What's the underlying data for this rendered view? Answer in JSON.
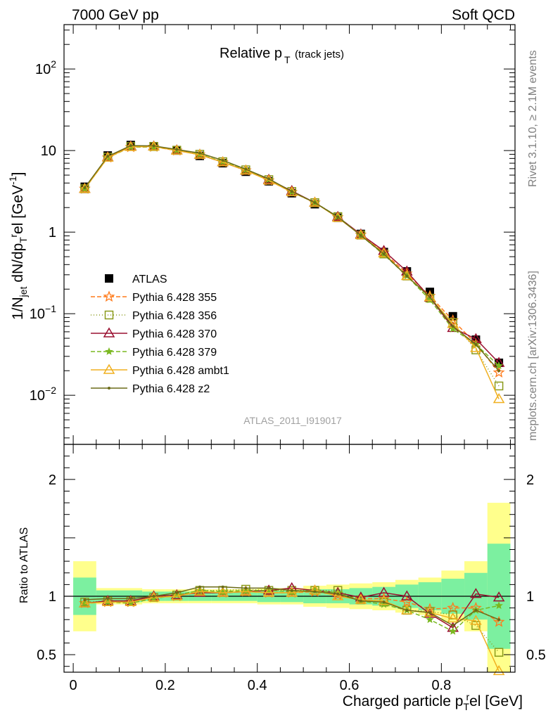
{
  "header": {
    "left": "7000 GeV pp",
    "right": "Soft QCD"
  },
  "side_labels": {
    "rivet": "Rivet 3.1.10, ≥ 2.1M events",
    "mcplots": "mcplots.cern.ch [arXiv:1306.3436]"
  },
  "watermark": "ATLAS_2011_I919017",
  "colors": {
    "ATLAS": "#000000",
    "p355": "#ff7a1a",
    "p356": "#8a9a1a",
    "p370": "#9a1030",
    "p379": "#7ab820",
    "ambt1": "#f0b020",
    "z2": "#6b6b18",
    "band_inner": "#7cf0a0",
    "band_outer": "#ffff8c"
  },
  "chart_data": [
    {
      "type": "line",
      "panel": "main",
      "title_main": "Relative p",
      "title_sub": "T",
      "title_tail": "(track jets)",
      "ylabel": "1/N_jet dN/dp_T^rel [GeV^-1]",
      "yscale": "log",
      "ylim": [
        0.0025,
        350
      ],
      "xlim": [
        -0.02,
        0.96
      ],
      "yticks": [
        {
          "v": 0.01,
          "b": "10",
          "e": "−2"
        },
        {
          "v": 0.1,
          "b": "10",
          "e": "−1"
        },
        {
          "v": 1,
          "b": "1",
          "e": ""
        },
        {
          "v": 10,
          "b": "10",
          "e": ""
        },
        {
          "v": 100,
          "b": "10",
          "e": "2"
        }
      ],
      "x": [
        0.025,
        0.075,
        0.125,
        0.175,
        0.225,
        0.275,
        0.325,
        0.375,
        0.425,
        0.475,
        0.525,
        0.575,
        0.625,
        0.675,
        0.725,
        0.775,
        0.825,
        0.875,
        0.925
      ],
      "series": [
        {
          "name": "ATLAS",
          "key": "ATLAS",
          "marker": "square",
          "dash": "",
          "values": [
            3.6,
            8.7,
            11.7,
            11.3,
            10.0,
            8.6,
            7.0,
            5.5,
            4.2,
            3.0,
            2.2,
            1.5,
            0.95,
            0.57,
            0.33,
            0.185,
            0.093,
            0.048,
            0.025
          ]
        },
        {
          "name": "Pythia 6.428 355",
          "key": "p355",
          "marker": "star",
          "dash": "6,3",
          "values": [
            3.4,
            8.2,
            11.0,
            11.1,
            10.0,
            8.9,
            7.2,
            5.7,
            4.3,
            3.1,
            2.3,
            1.52,
            0.93,
            0.56,
            0.31,
            0.165,
            0.083,
            0.043,
            0.019
          ]
        },
        {
          "name": "Pythia 6.428 356",
          "key": "p356",
          "marker": "opensquare",
          "dash": "1,3",
          "values": [
            3.4,
            8.3,
            11.2,
            11.2,
            10.1,
            9.0,
            7.3,
            5.8,
            4.4,
            3.15,
            2.3,
            1.55,
            0.92,
            0.54,
            0.29,
            0.155,
            0.078,
            0.036,
            0.013
          ]
        },
        {
          "name": "Pythia 6.428 370",
          "key": "p370",
          "marker": "opentriangle",
          "dash": "",
          "values": [
            3.4,
            8.3,
            11.3,
            11.3,
            10.1,
            8.9,
            7.2,
            5.7,
            4.4,
            3.2,
            2.3,
            1.54,
            0.94,
            0.59,
            0.33,
            0.158,
            0.067,
            0.049,
            0.025
          ]
        },
        {
          "name": "Pythia 6.428 379",
          "key": "p379",
          "marker": "smallstar",
          "dash": "6,3",
          "values": [
            3.4,
            8.2,
            11.0,
            11.1,
            10.1,
            9.0,
            7.3,
            5.8,
            4.4,
            3.1,
            2.3,
            1.55,
            0.91,
            0.53,
            0.29,
            0.148,
            0.065,
            0.042,
            0.023
          ]
        },
        {
          "name": "Pythia 6.428 ambt1",
          "key": "ambt1",
          "marker": "opentriangle",
          "dash": "",
          "values": [
            3.4,
            8.2,
            11.1,
            11.2,
            10.0,
            8.9,
            7.2,
            5.7,
            4.3,
            3.1,
            2.3,
            1.5,
            0.92,
            0.55,
            0.29,
            0.16,
            0.075,
            0.038,
            0.009
          ]
        },
        {
          "name": "Pythia 6.428 z2",
          "key": "z2",
          "marker": "dot",
          "dash": "",
          "values": [
            3.5,
            8.5,
            11.5,
            11.4,
            10.3,
            9.3,
            7.6,
            5.9,
            4.5,
            3.15,
            2.3,
            1.53,
            0.91,
            0.54,
            0.29,
            0.16,
            0.07,
            0.042,
            0.02
          ]
        }
      ]
    },
    {
      "type": "line",
      "panel": "ratio",
      "ylabel": "Ratio to ATLAS",
      "xlabel": "Charged particle p_T^rel [GeV]",
      "ylim": [
        0.35,
        2.3
      ],
      "xlim": [
        -0.02,
        0.96
      ],
      "yticks": [
        0.5,
        1,
        2
      ],
      "xticks": [
        0,
        0.2,
        0.4,
        0.6,
        0.8
      ],
      "x": [
        0.025,
        0.075,
        0.125,
        0.175,
        0.225,
        0.275,
        0.325,
        0.375,
        0.425,
        0.475,
        0.525,
        0.575,
        0.625,
        0.675,
        0.725,
        0.775,
        0.825,
        0.875,
        0.925
      ],
      "band_inner": [
        0.16,
        0.05,
        0.05,
        0.04,
        0.04,
        0.04,
        0.04,
        0.04,
        0.05,
        0.05,
        0.06,
        0.06,
        0.07,
        0.08,
        0.1,
        0.12,
        0.15,
        0.2,
        0.45
      ],
      "band_outer": [
        0.3,
        0.07,
        0.07,
        0.06,
        0.06,
        0.06,
        0.06,
        0.06,
        0.07,
        0.07,
        0.09,
        0.1,
        0.11,
        0.12,
        0.14,
        0.16,
        0.22,
        0.3,
        0.8
      ],
      "series": [
        {
          "name": "Pythia 6.428 355",
          "key": "p355",
          "marker": "star",
          "dash": "6,3",
          "values": [
            0.94,
            0.95,
            0.95,
            0.99,
            1.0,
            1.04,
            1.03,
            1.04,
            1.03,
            1.03,
            1.04,
            1.01,
            0.98,
            0.98,
            0.95,
            0.89,
            0.9,
            0.9,
            0.78
          ]
        },
        {
          "name": "Pythia 6.428 356",
          "key": "p356",
          "marker": "opensquare",
          "dash": "1,3",
          "values": [
            0.95,
            0.96,
            0.96,
            0.99,
            1.01,
            1.05,
            1.05,
            1.06,
            1.05,
            1.05,
            1.05,
            1.05,
            0.97,
            0.95,
            0.88,
            0.87,
            0.84,
            0.75,
            0.52
          ]
        },
        {
          "name": "Pythia 6.428 370",
          "key": "p370",
          "marker": "opentriangle",
          "dash": "",
          "values": [
            0.94,
            0.96,
            0.96,
            1.0,
            1.01,
            1.03,
            1.03,
            1.04,
            1.05,
            1.07,
            1.05,
            1.03,
            0.99,
            1.03,
            1.0,
            0.85,
            0.73,
            1.02,
            0.99
          ]
        },
        {
          "name": "Pythia 6.428 379",
          "key": "p379",
          "marker": "smallstar",
          "dash": "6,3",
          "values": [
            0.94,
            0.95,
            0.94,
            0.98,
            1.01,
            1.05,
            1.04,
            1.05,
            1.05,
            1.04,
            1.05,
            1.03,
            0.96,
            0.93,
            0.88,
            0.8,
            0.7,
            0.88,
            0.92
          ]
        },
        {
          "name": "Pythia 6.428 ambt1",
          "key": "ambt1",
          "marker": "opentriangle",
          "dash": "",
          "values": [
            0.94,
            0.95,
            0.95,
            0.99,
            1.0,
            1.04,
            1.03,
            1.04,
            1.03,
            1.03,
            1.05,
            1.0,
            0.97,
            0.96,
            0.88,
            0.86,
            0.81,
            0.79,
            0.36
          ]
        },
        {
          "name": "Pythia 6.428 z2",
          "key": "z2",
          "marker": "dot",
          "dash": "",
          "values": [
            0.97,
            0.98,
            0.98,
            1.0,
            1.03,
            1.08,
            1.08,
            1.07,
            1.07,
            1.05,
            1.04,
            1.02,
            0.96,
            0.95,
            0.88,
            0.86,
            0.75,
            0.88,
            0.8
          ]
        }
      ]
    }
  ]
}
